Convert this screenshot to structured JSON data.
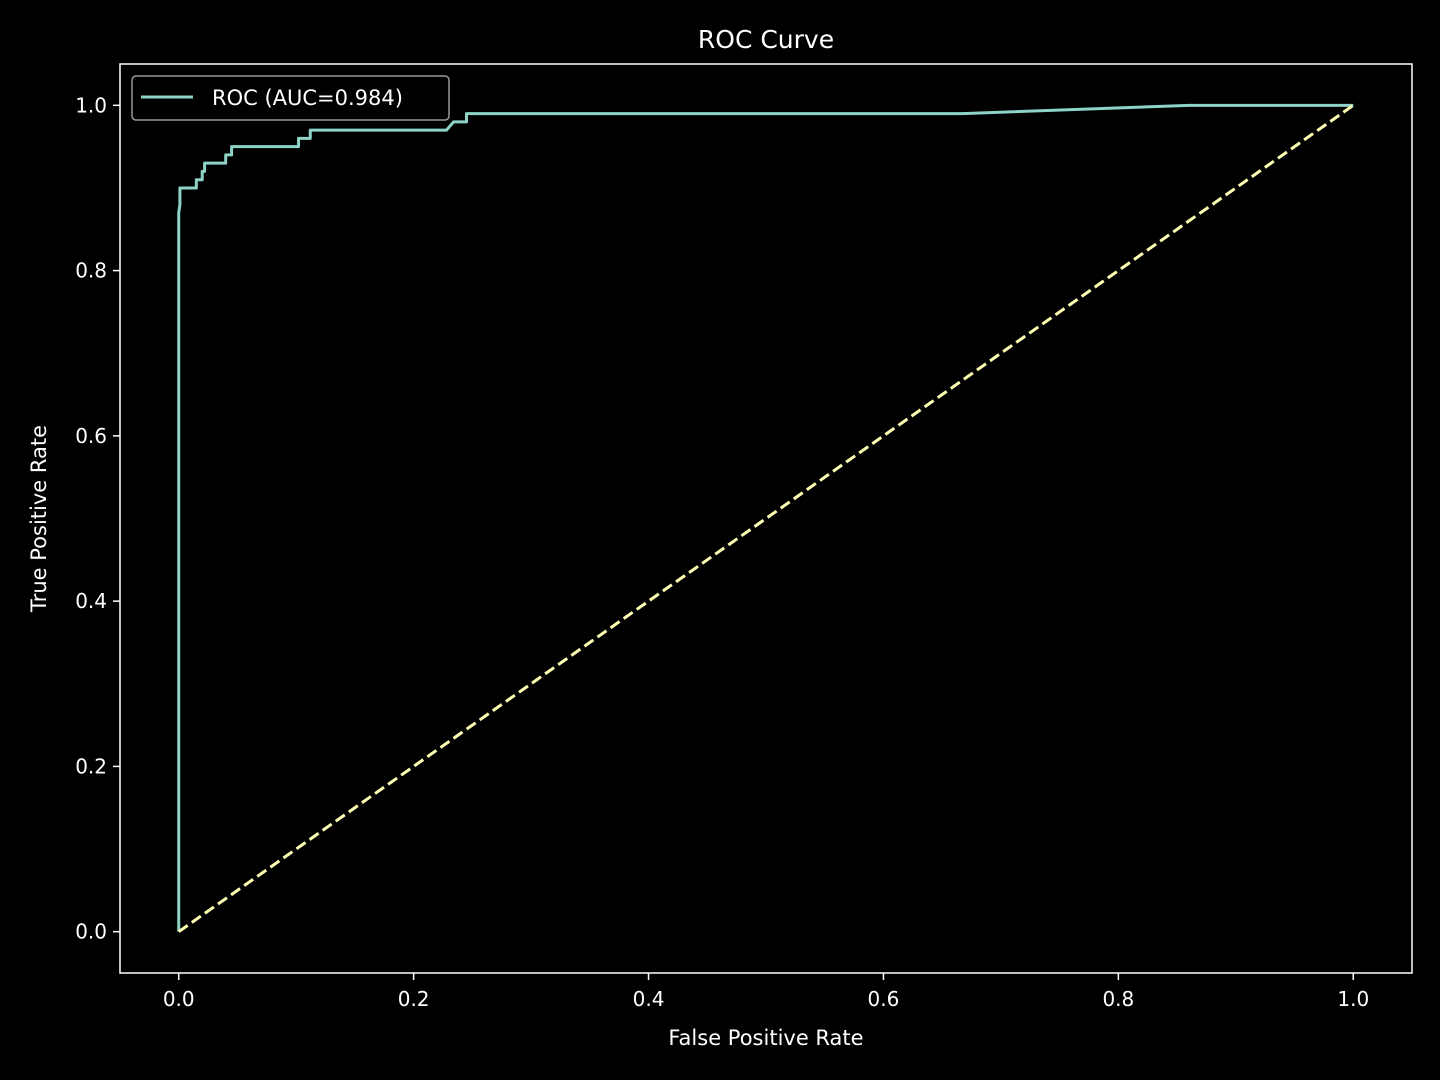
{
  "chart_data": {
    "type": "line",
    "title": "ROC Curve",
    "xlabel": "False Positive Rate",
    "ylabel": "True Positive Rate",
    "xlim": [
      -0.05,
      1.05
    ],
    "ylim": [
      -0.05,
      1.05
    ],
    "xticks": [
      "0.0",
      "0.2",
      "0.4",
      "0.6",
      "0.8",
      "1.0"
    ],
    "xtick_values": [
      0.0,
      0.2,
      0.4,
      0.6,
      0.8,
      1.0
    ],
    "yticks": [
      "0.0",
      "0.2",
      "0.4",
      "0.6",
      "0.8",
      "1.0"
    ],
    "ytick_values": [
      0.0,
      0.2,
      0.4,
      0.6,
      0.8,
      1.0
    ],
    "grid": false,
    "legend_position": "top-left",
    "background_color": "#000000",
    "series": [
      {
        "name": "ROC (AUC=0.984)",
        "color": "#8dd3c7",
        "style": "solid",
        "x": [
          0.0,
          0.0,
          0.0,
          0.001,
          0.001,
          0.015,
          0.015,
          0.02,
          0.02,
          0.022,
          0.022,
          0.04,
          0.04,
          0.045,
          0.045,
          0.102,
          0.102,
          0.112,
          0.112,
          0.228,
          0.234,
          0.245,
          0.245,
          0.667,
          0.86,
          1.0
        ],
        "y": [
          0.0,
          0.82,
          0.87,
          0.88,
          0.9,
          0.9,
          0.91,
          0.91,
          0.92,
          0.92,
          0.93,
          0.93,
          0.94,
          0.94,
          0.95,
          0.95,
          0.96,
          0.96,
          0.97,
          0.97,
          0.98,
          0.98,
          0.99,
          0.99,
          1.0,
          1.0
        ]
      },
      {
        "name": "",
        "color": "#ffffb3",
        "style": "dashed",
        "x": [
          0.0,
          1.0
        ],
        "y": [
          0.0,
          1.0
        ]
      }
    ]
  }
}
